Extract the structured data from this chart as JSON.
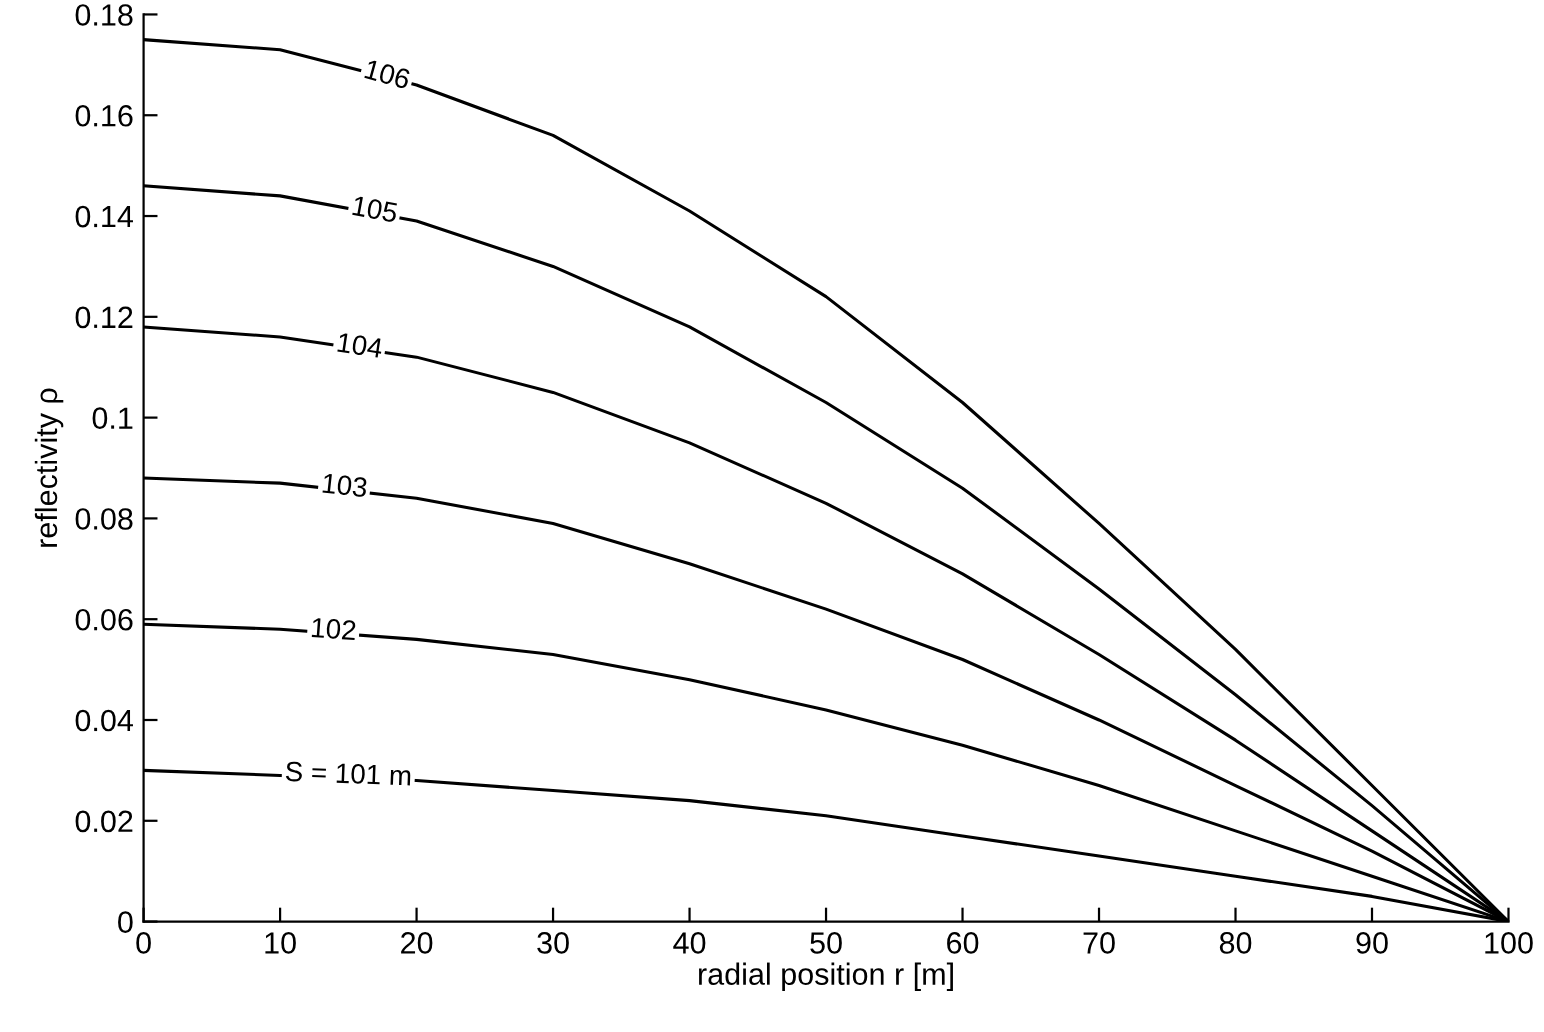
{
  "chart_data": {
    "type": "line",
    "xlabel": "radial position r [m]",
    "ylabel": "reflectivity ρ",
    "x": [
      0,
      10,
      20,
      30,
      40,
      50,
      60,
      70,
      80,
      90,
      100
    ],
    "series": [
      {
        "color": "#000000",
        "values": [
          0.03,
          0.029,
          0.028,
          0.026,
          0.024,
          0.021,
          0.017,
          0.013,
          0.009,
          0.005,
          0
        ]
      },
      {
        "color": "#000000",
        "values": [
          0.059,
          0.058,
          0.056,
          0.053,
          0.048,
          0.042,
          0.035,
          0.027,
          0.018,
          0.009,
          0
        ]
      },
      {
        "color": "#000000",
        "values": [
          0.088,
          0.087,
          0.084,
          0.079,
          0.071,
          0.062,
          0.052,
          0.04,
          0.027,
          0.014,
          0
        ]
      },
      {
        "color": "#000000",
        "values": [
          0.118,
          0.116,
          0.112,
          0.105,
          0.095,
          0.083,
          0.069,
          0.053,
          0.036,
          0.018,
          0
        ]
      },
      {
        "color": "#000000",
        "values": [
          0.146,
          0.144,
          0.139,
          0.13,
          0.118,
          0.103,
          0.086,
          0.066,
          0.045,
          0.023,
          0
        ]
      },
      {
        "color": "#000000",
        "values": [
          0.175,
          0.173,
          0.166,
          0.156,
          0.141,
          0.124,
          0.103,
          0.079,
          0.054,
          0.027,
          0
        ]
      }
    ],
    "annotations": [
      {
        "text": "S = 101 m",
        "x": 15,
        "y": 0.0289
      },
      {
        "text": "102",
        "x": 13.9,
        "y": 0.0576
      },
      {
        "text": "103",
        "x": 14.7,
        "y": 0.0861
      },
      {
        "text": "104",
        "x": 15.8,
        "y": 0.1139
      },
      {
        "text": "105",
        "x": 16.9,
        "y": 0.1409
      },
      {
        "text": "106",
        "x": 17.8,
        "y": 0.1677
      }
    ],
    "xlim": [
      0,
      100
    ],
    "xticks": [
      0,
      10,
      20,
      30,
      40,
      50,
      60,
      70,
      80,
      90,
      100
    ],
    "ylim": [
      0,
      0.18
    ],
    "yticks": [
      0,
      0.02,
      0.04,
      0.06,
      0.08,
      {
        "value": 0.1,
        "label": "0.1"
      },
      0.12,
      0.14,
      0.16,
      0.18
    ],
    "grid": false,
    "legend": false,
    "marker": "none",
    "line_style": "solid"
  }
}
